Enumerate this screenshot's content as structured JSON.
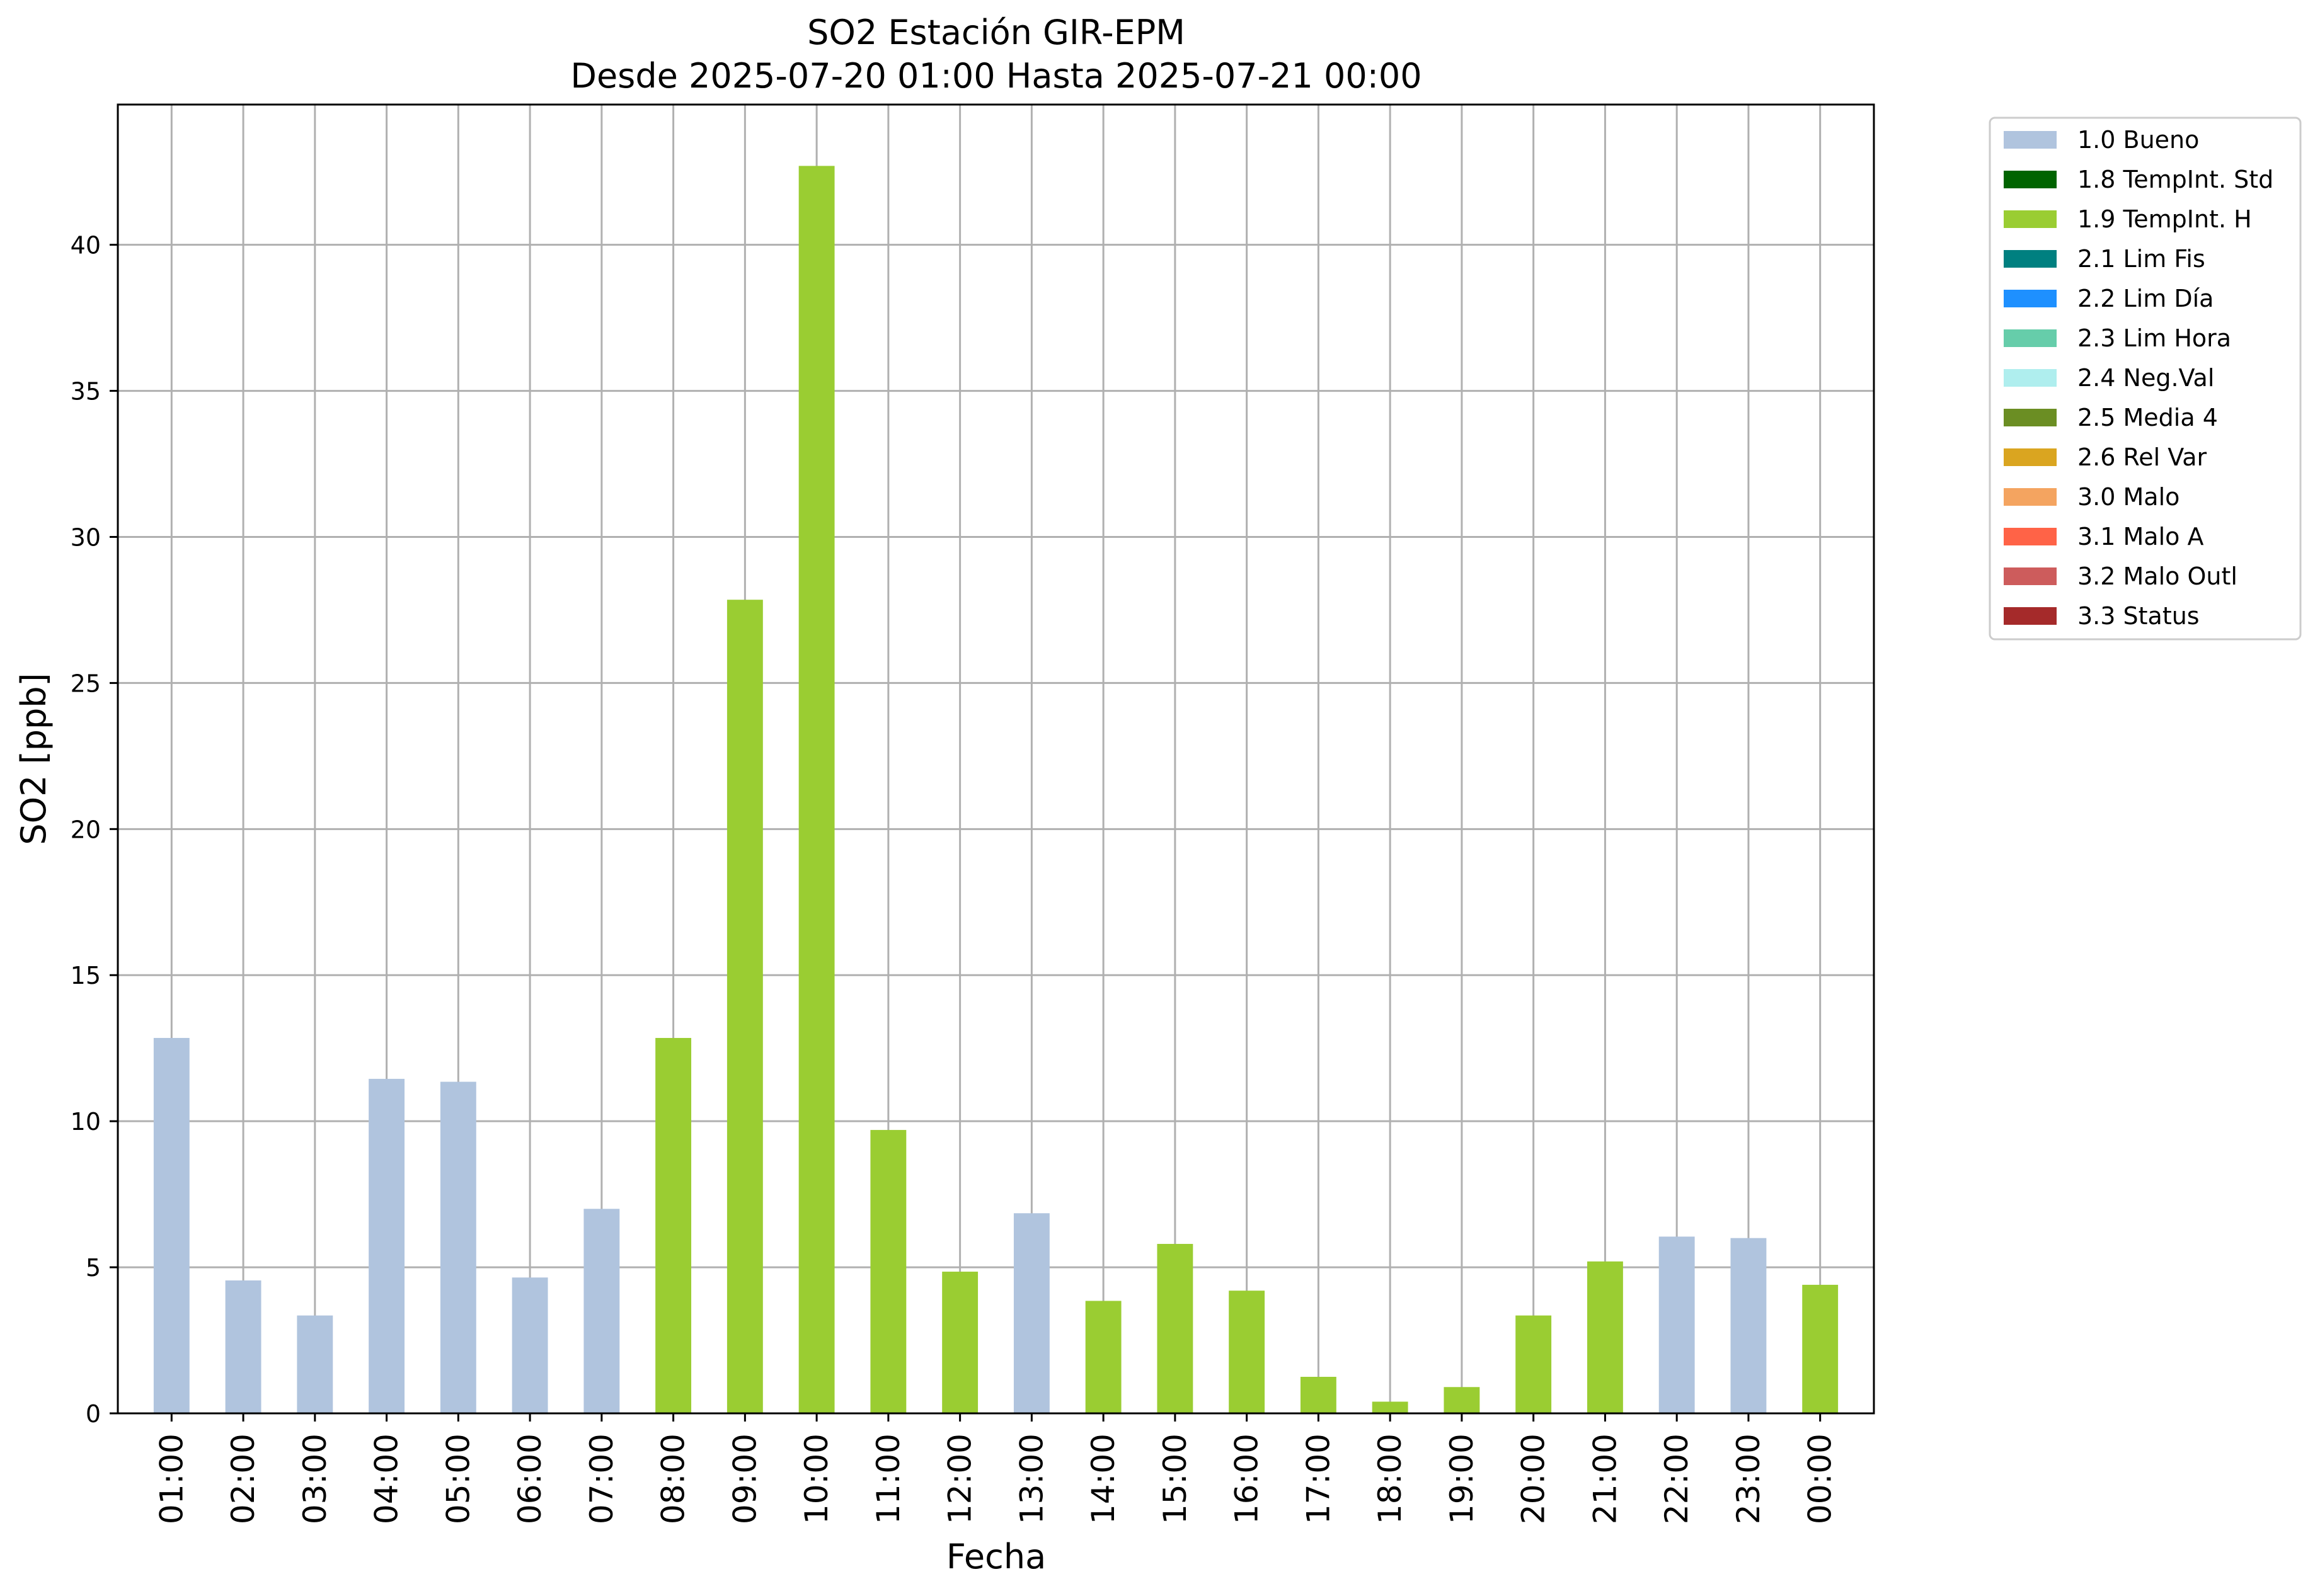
{
  "chart_data": {
    "type": "bar",
    "title": "SO2 Estación GIR-EPM",
    "subtitle": "Desde 2025-07-20 01:00 Hasta 2025-07-21 00:00",
    "xlabel": "Fecha",
    "ylabel": "SO2 [ppb]",
    "ylim": [
      0,
      44.8
    ],
    "yticks": [
      "0",
      "5",
      "10",
      "15",
      "20",
      "25",
      "30",
      "35",
      "40"
    ],
    "grid": true,
    "legend_position": "outside-top-right",
    "categories": [
      "01:00",
      "02:00",
      "03:00",
      "04:00",
      "05:00",
      "06:00",
      "07:00",
      "08:00",
      "09:00",
      "10:00",
      "11:00",
      "12:00",
      "13:00",
      "14:00",
      "15:00",
      "16:00",
      "17:00",
      "18:00",
      "19:00",
      "20:00",
      "21:00",
      "22:00",
      "23:00",
      "00:00"
    ],
    "values": [
      12.85,
      4.55,
      3.35,
      11.45,
      11.35,
      4.65,
      7.0,
      12.85,
      27.85,
      42.7,
      9.7,
      4.85,
      6.85,
      3.85,
      5.8,
      4.2,
      1.25,
      0.4,
      0.9,
      3.35,
      5.2,
      6.05,
      6.0,
      4.4
    ],
    "flags": [
      "1.0 Bueno",
      "1.0 Bueno",
      "1.0 Bueno",
      "1.0 Bueno",
      "1.0 Bueno",
      "1.0 Bueno",
      "1.0 Bueno",
      "1.9 TempInt. H",
      "1.9 TempInt. H",
      "1.9 TempInt. H",
      "1.9 TempInt. H",
      "1.9 TempInt. H",
      "1.0 Bueno",
      "1.9 TempInt. H",
      "1.9 TempInt. H",
      "1.9 TempInt. H",
      "1.9 TempInt. H",
      "1.9 TempInt. H",
      "1.9 TempInt. H",
      "1.9 TempInt. H",
      "1.9 TempInt. H",
      "1.0 Bueno",
      "1.0 Bueno",
      "1.9 TempInt. H"
    ],
    "legend": [
      {
        "label": "1.0 Bueno",
        "color": "#b0c4de"
      },
      {
        "label": "1.8 TempInt. Std",
        "color": "#006400"
      },
      {
        "label": "1.9 TempInt. H",
        "color": "#9acd32"
      },
      {
        "label": "2.1 Lim Fis",
        "color": "#008080"
      },
      {
        "label": "2.2 Lim Día",
        "color": "#1e90ff"
      },
      {
        "label": "2.3 Lim Hora",
        "color": "#66cdaa"
      },
      {
        "label": "2.4 Neg.Val",
        "color": "#afeeee"
      },
      {
        "label": "2.5 Media 4",
        "color": "#6b8e23"
      },
      {
        "label": "2.6 Rel Var",
        "color": "#daa520"
      },
      {
        "label": "3.0 Malo",
        "color": "#f4a460"
      },
      {
        "label": "3.1 Malo A",
        "color": "#ff6347"
      },
      {
        "label": "3.2 Malo Outl",
        "color": "#cd5c5c"
      },
      {
        "label": "3.3 Status",
        "color": "#a52a2a"
      }
    ]
  }
}
